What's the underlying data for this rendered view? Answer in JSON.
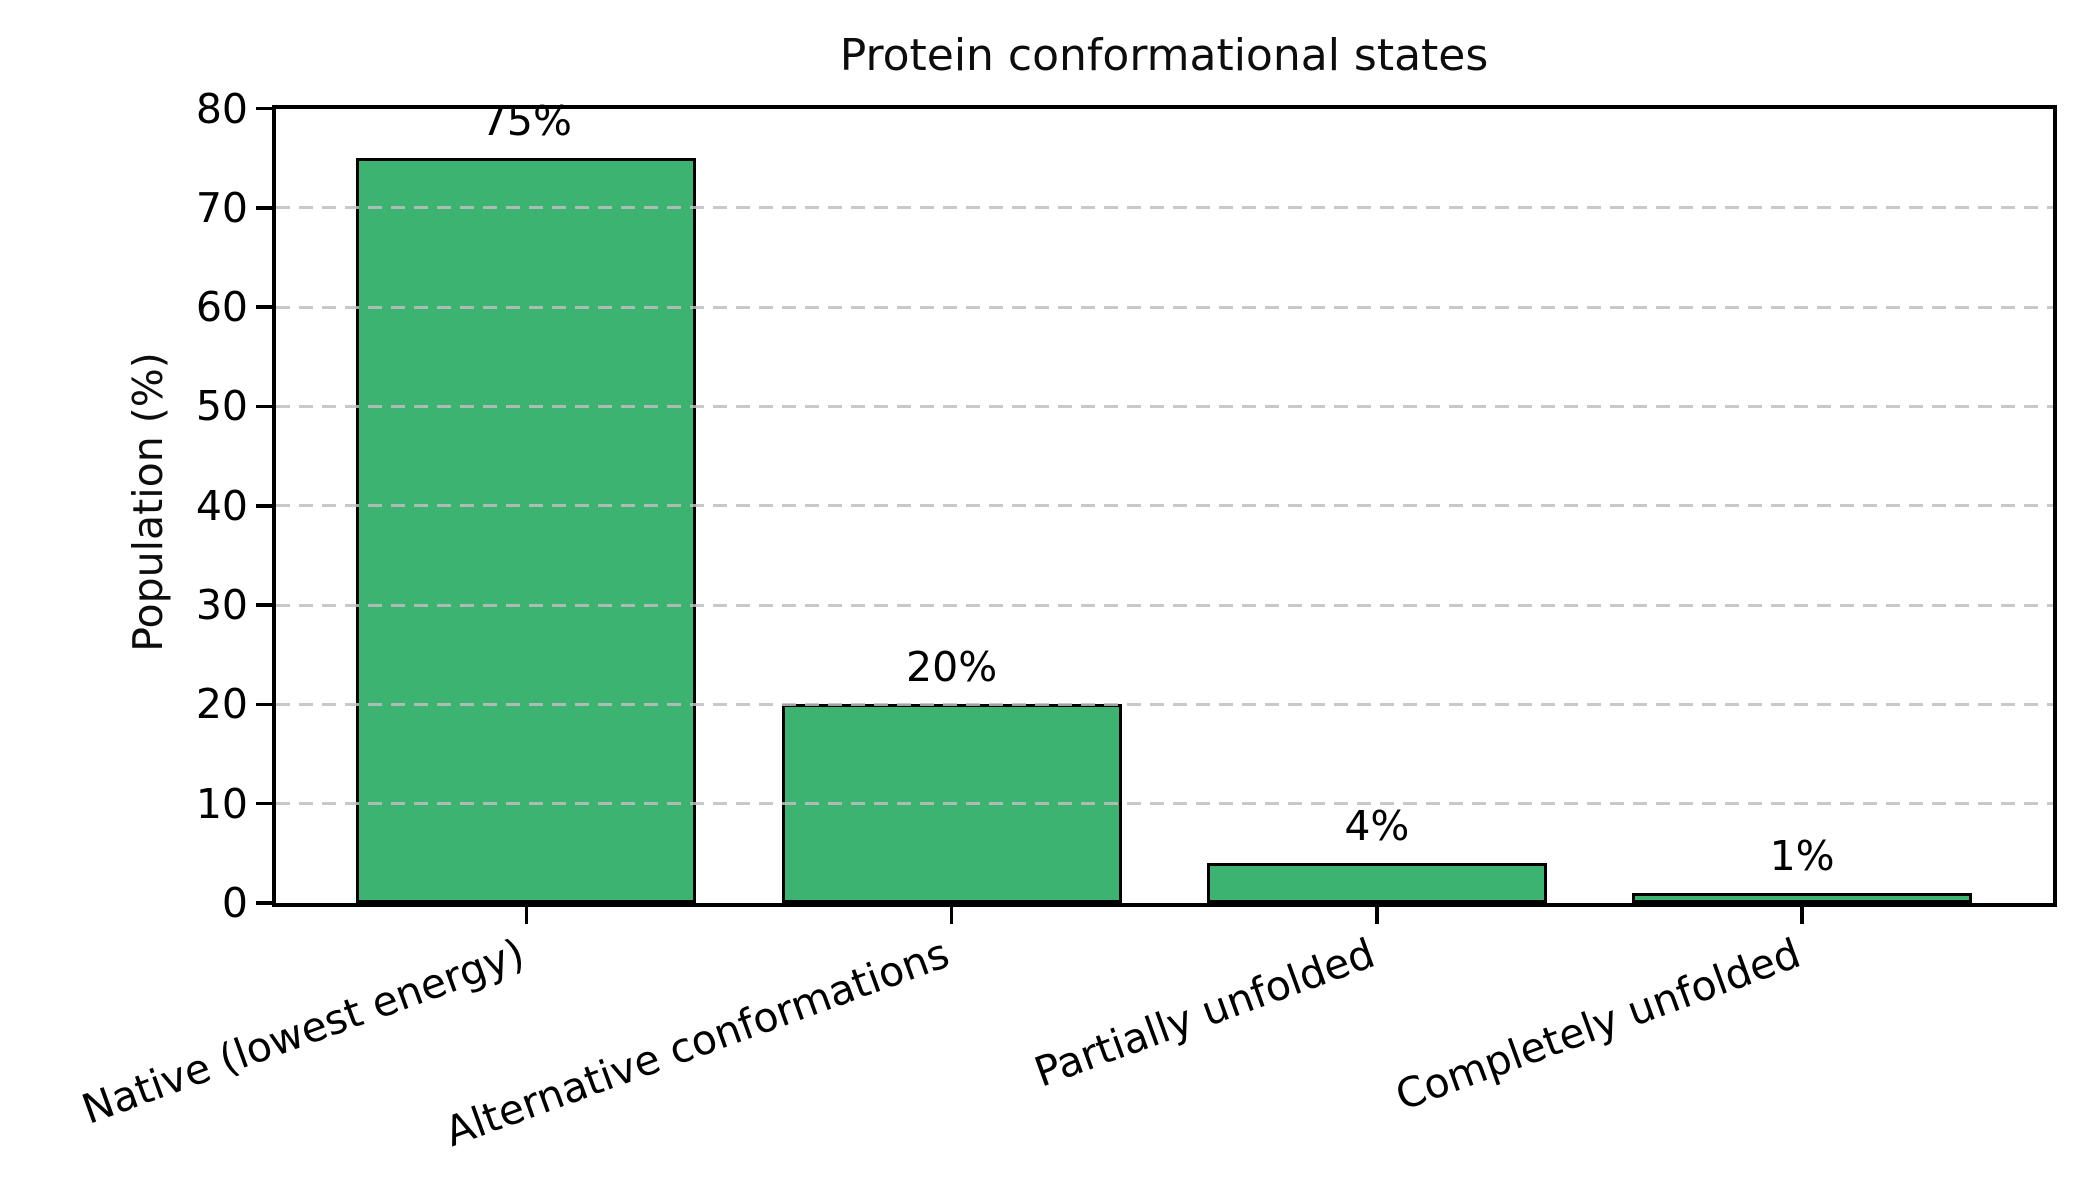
{
  "figure": {
    "title": "Protein conformational states"
  },
  "chart_data": {
    "type": "bar",
    "title": "Protein conformational states",
    "categories": [
      "Native (lowest energy)",
      "Alternative conformations",
      "Partially unfolded",
      "Completely unfolded"
    ],
    "values": [
      75,
      20,
      4,
      1
    ],
    "bar_labels": [
      "75%",
      "20%",
      "4%",
      "1%"
    ],
    "xlabel": "",
    "ylabel": "Population (%)",
    "ylim": [
      0,
      80
    ],
    "yticks": [
      0,
      10,
      20,
      30,
      40,
      50,
      60,
      70,
      80
    ],
    "ytick_labels": [
      "0",
      "10",
      "20",
      "30",
      "40",
      "50",
      "60",
      "70",
      "80"
    ],
    "grid": "horizontal-dashed",
    "grid_on": true,
    "legend": "none",
    "bar_color": "#3cb371",
    "bar_edge_color": "#000000",
    "grid_color": "#bfbfbf",
    "xtick_label_rotation_deg": 20
  }
}
